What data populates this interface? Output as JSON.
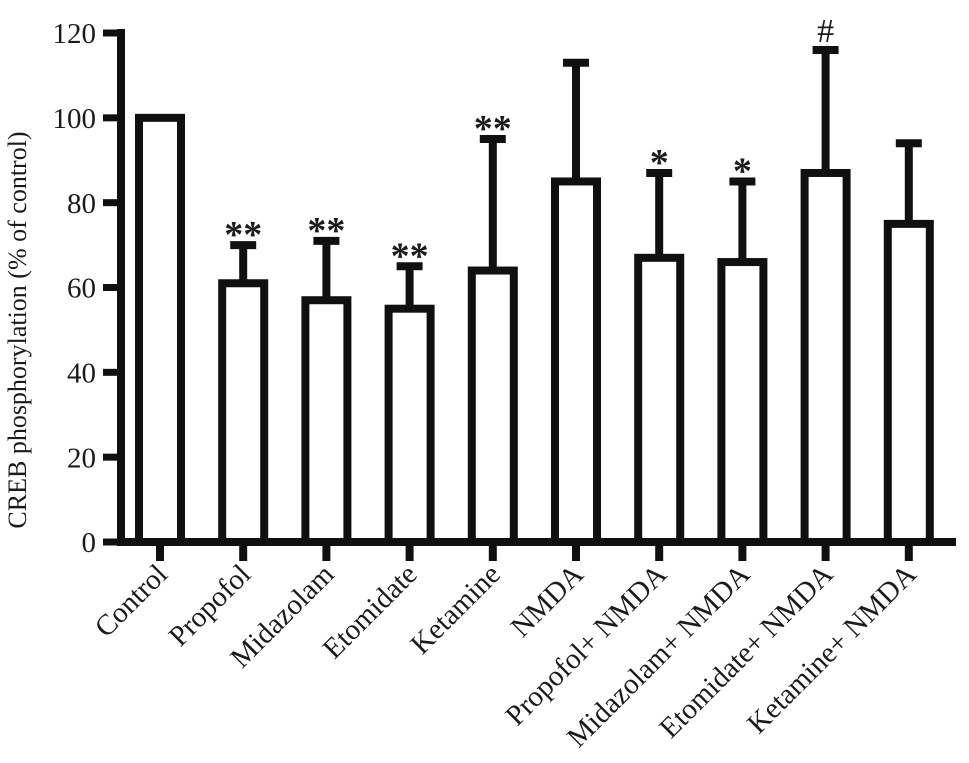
{
  "chart_data": {
    "type": "bar",
    "title": "",
    "xlabel": "",
    "ylabel": "CREB phosphorylation (% of control)",
    "ylim": [
      0,
      120
    ],
    "yticks": [
      0,
      20,
      40,
      60,
      80,
      100,
      120
    ],
    "grid": false,
    "legend": "none",
    "bar_fill": "#ffffff",
    "ink_color": "#101010",
    "text_color": "#1b1b1b",
    "categories": [
      "Control",
      "Propofol",
      "Midazolam",
      "Etomidate",
      "Ketamine",
      "NMDA",
      "Propofol+ NMDA",
      "Midazolam+ NMDA",
      "Etomidate+ NMDA",
      "Ketamine+ NMDA"
    ],
    "values": [
      100,
      61,
      57,
      55,
      64,
      85,
      67,
      66,
      87,
      75
    ],
    "error_up": [
      0,
      9,
      14,
      10,
      31,
      28,
      20,
      19,
      29,
      19
    ],
    "annotations": [
      "",
      "**",
      "**",
      "**",
      "**",
      "",
      "*",
      "*",
      "#",
      ""
    ]
  }
}
